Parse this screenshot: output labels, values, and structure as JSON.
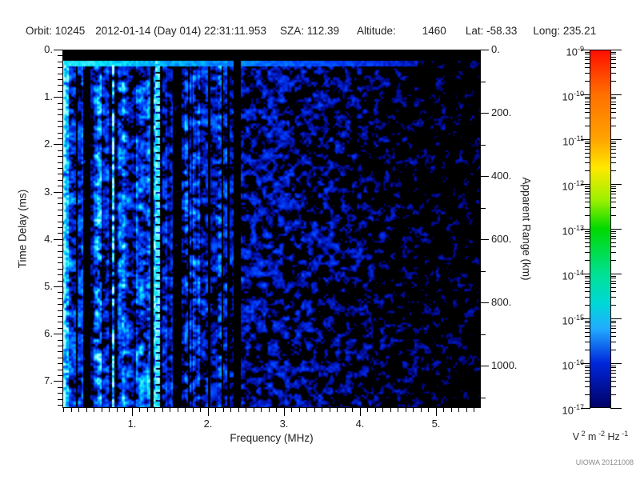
{
  "header": {
    "items": [
      "Orbit: 10245",
      "2012-01-14 (Day 014) 22:31:11.953",
      "SZA: 112.39",
      "Altitude:",
      "1460",
      "Lat: -58.33",
      "Long: 235.21"
    ]
  },
  "footer": {
    "watermark": "UIOWA 20121008"
  },
  "chart_data": {
    "type": "heatmap",
    "subtype": "radar-sounder-spectrogram",
    "title": "",
    "xlabel": "Frequency (MHz)",
    "ylabel_left": "Time Delay (ms)",
    "ylabel_right": "Apparent Range (km)",
    "xlim_mhz": [
      0.086,
      5.59
    ],
    "ylim_ms": [
      0,
      7.57
    ],
    "ylim_km": [
      0,
      1133
    ],
    "grid": false,
    "x_axis": {
      "major_ticks": [
        1,
        2,
        3,
        4,
        5
      ],
      "major_labels": [
        "1.",
        "2.",
        "3.",
        "4.",
        "5."
      ],
      "minor_step_mhz": 0.1
    },
    "y_axis": {
      "major_ticks": [
        0,
        1,
        2,
        3,
        4,
        5,
        6,
        7
      ],
      "major_labels": [
        "0.",
        "1.",
        "2.",
        "3.",
        "4.",
        "5.",
        "6.",
        "7."
      ],
      "minor_step_ms": 0.125
    },
    "range_axis": {
      "major_ticks": [
        0,
        200,
        400,
        600,
        800,
        1000
      ],
      "major_labels": [
        "0.",
        "200.",
        "400.",
        "600.",
        "800.",
        "1000."
      ],
      "minor_step_km": 100
    },
    "colorbar": {
      "scale": "log10",
      "max": "1e-9",
      "min": "1e-17",
      "tick_base": "10",
      "tick_exponents": [
        "-9",
        "-10",
        "-11",
        "-12",
        "-13",
        "-14",
        "-15",
        "-16",
        "-17"
      ],
      "units_parts": [
        {
          "t": "V",
          "s": "2"
        },
        {
          "t": "m",
          "s": "-2"
        },
        {
          "t": "Hz",
          "s": "-1"
        }
      ],
      "gradient": [
        [
          0,
          "#ff0d00"
        ],
        [
          0.125,
          "#ff7000"
        ],
        [
          0.25,
          "#ffa300"
        ],
        [
          0.33,
          "#ffe800"
        ],
        [
          0.42,
          "#9cf000"
        ],
        [
          0.5,
          "#00d900"
        ],
        [
          0.625,
          "#00e193"
        ],
        [
          0.71,
          "#00d8d8"
        ],
        [
          0.78,
          "#22aaff"
        ],
        [
          0.875,
          "#0026db"
        ],
        [
          1,
          "#000063"
        ]
      ]
    },
    "spectrogram": {
      "seed": 20121008,
      "description": "Blue receiver-noise field, brightest below ~2 MHz with vertical striping, fading to black-speckled background above ~4.5 MHz",
      "noise_floor_profile": [
        [
          0.086,
          1.02
        ],
        [
          0.6,
          0.95
        ],
        [
          1.2,
          0.82
        ],
        [
          2.0,
          0.72
        ],
        [
          2.6,
          0.66
        ],
        [
          3.2,
          0.62
        ],
        [
          3.8,
          0.56
        ],
        [
          4.3,
          0.5
        ],
        [
          4.8,
          0.46
        ],
        [
          5.2,
          0.44
        ],
        [
          5.59,
          0.42
        ]
      ],
      "striped_region_mhz": [
        0.086,
        2.33
      ],
      "features": {
        "saturated_black_band_ms": [
          0,
          0.22
        ],
        "bright_calibration_row_ms": [
          0.22,
          0.31
        ],
        "bright_left_edge_mhz": [
          0.086,
          0.16
        ],
        "dark_interference_mhz": [
          [
            0.255,
            0.285
          ],
          [
            0.35,
            0.45
          ]
        ],
        "bright_harmonic_line_mhz": [
          1.31,
          1.36
        ],
        "absorption_gap_mhz": [
          2.33,
          2.43
        ]
      },
      "heat_palette": [
        [
          0.42,
          "#00005f"
        ],
        [
          0.6,
          "#001ecd"
        ],
        [
          0.78,
          "#0046ff"
        ],
        [
          1.0,
          "#0091ff"
        ],
        [
          1.2,
          "#00e1fa"
        ],
        [
          1.55,
          "#b4ffff"
        ]
      ]
    }
  }
}
